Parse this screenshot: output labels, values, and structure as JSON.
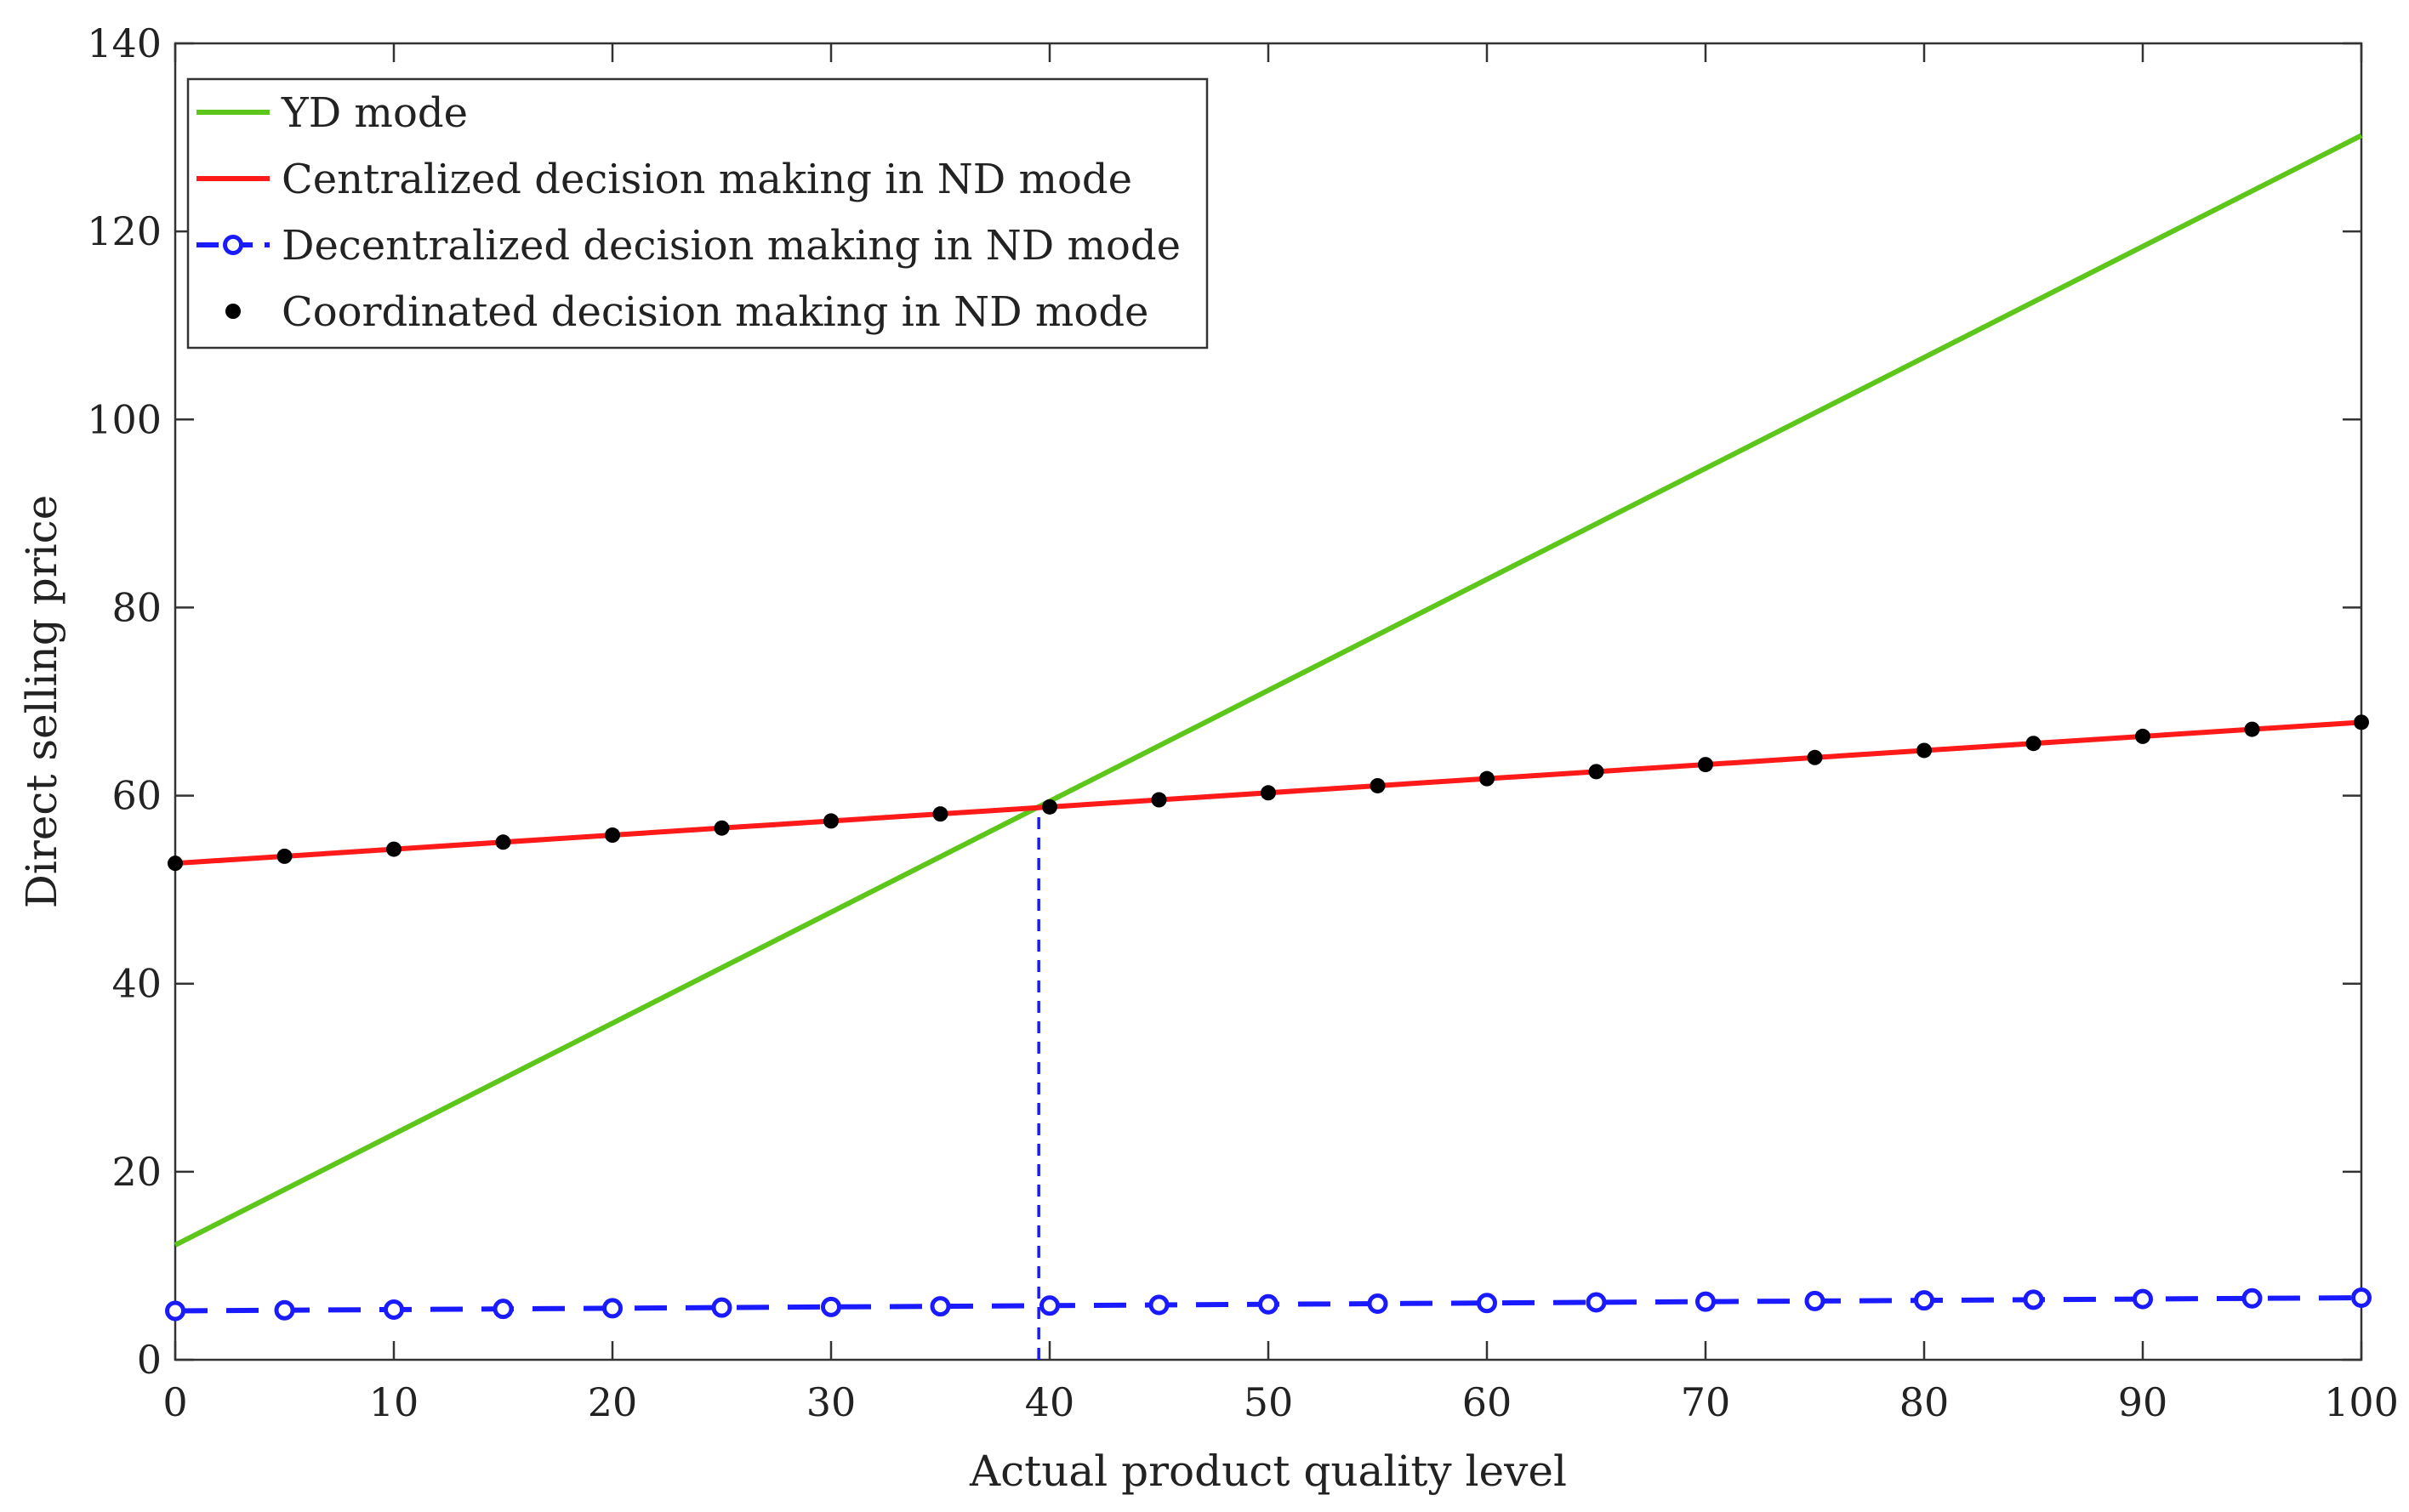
{
  "chart_data": {
    "type": "line",
    "title": "",
    "xlabel": "Actual product quality level",
    "ylabel": "Direct selling price",
    "xlim": [
      0,
      100
    ],
    "ylim": [
      0,
      140
    ],
    "xticks": [
      0,
      10,
      20,
      30,
      40,
      50,
      60,
      70,
      80,
      90,
      100
    ],
    "yticks": [
      0,
      20,
      40,
      60,
      80,
      100,
      120,
      140
    ],
    "grid": false,
    "legend_position": "top-left",
    "colors": {
      "yd": "#5cc71a",
      "centralized": "#ff1a1a",
      "decentralized": "#1a1aff",
      "coordinated": "#000000",
      "axis": "#333333"
    },
    "series": [
      {
        "name": "YD mode",
        "style": "solid-line",
        "color": "#5cc71a",
        "x": [
          0,
          100
        ],
        "values": [
          12.2,
          130.2
        ]
      },
      {
        "name": "Centralized decision making in ND mode",
        "style": "solid-line",
        "color": "#ff1a1a",
        "x": [
          0,
          100
        ],
        "values": [
          52.8,
          67.8
        ]
      },
      {
        "name": "Decentralized decision making in ND mode",
        "style": "dashed-line-open-circle",
        "color": "#1a1aff",
        "x": [
          0,
          5,
          10,
          15,
          20,
          25,
          30,
          35,
          40,
          45,
          50,
          55,
          60,
          65,
          70,
          75,
          80,
          85,
          90,
          95,
          100
        ],
        "values": [
          5.2,
          5.27,
          5.34,
          5.41,
          5.48,
          5.55,
          5.62,
          5.69,
          5.76,
          5.83,
          5.9,
          5.97,
          6.04,
          6.11,
          6.18,
          6.25,
          6.32,
          6.39,
          6.46,
          6.53,
          6.6
        ]
      },
      {
        "name": "Coordinated decision making in ND mode",
        "style": "filled-dot",
        "color": "#000000",
        "x": [
          0,
          5,
          10,
          15,
          20,
          25,
          30,
          35,
          40,
          45,
          50,
          55,
          60,
          65,
          70,
          75,
          80,
          85,
          90,
          95,
          100
        ],
        "values": [
          52.8,
          53.55,
          54.3,
          55.05,
          55.8,
          56.55,
          57.3,
          58.05,
          58.8,
          59.55,
          60.3,
          61.05,
          61.8,
          62.55,
          63.3,
          64.05,
          64.8,
          65.55,
          66.3,
          67.05,
          67.8
        ]
      }
    ],
    "annotations": [
      {
        "type": "vertical-dashed-line",
        "x": 39.5,
        "from_y": 0,
        "to_y": 58.7,
        "color": "#1a1aff",
        "note": "intersection of YD mode and centralized ND mode"
      }
    ]
  }
}
